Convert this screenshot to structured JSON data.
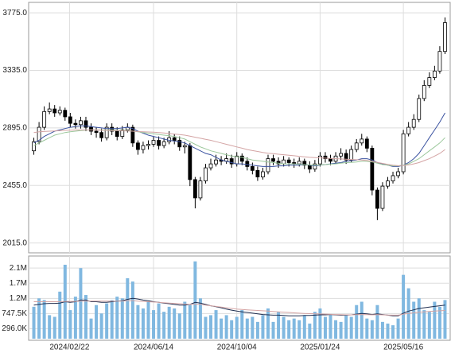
{
  "chart_data": [
    {
      "type": "candlestick",
      "x": [
        "2024-01-05",
        "2024-01-12",
        "2024-01-19",
        "2024-01-26",
        "2024-02-02",
        "2024-02-09",
        "2024-02-16",
        "2024-02-23",
        "2024-03-01",
        "2024-03-08",
        "2024-03-15",
        "2024-03-22",
        "2024-03-29",
        "2024-04-05",
        "2024-04-12",
        "2024-04-19",
        "2024-04-26",
        "2024-05-03",
        "2024-05-10",
        "2024-05-17",
        "2024-05-24",
        "2024-05-31",
        "2024-06-07",
        "2024-06-14",
        "2024-06-21",
        "2024-06-28",
        "2024-07-05",
        "2024-07-12",
        "2024-07-19",
        "2024-07-26",
        "2024-08-02",
        "2024-08-09",
        "2024-08-16",
        "2024-08-23",
        "2024-08-30",
        "2024-09-06",
        "2024-09-13",
        "2024-09-20",
        "2024-09-27",
        "2024-10-04",
        "2024-10-11",
        "2024-10-18",
        "2024-10-25",
        "2024-11-01",
        "2024-11-08",
        "2024-11-15",
        "2024-11-22",
        "2024-11-29",
        "2024-12-06",
        "2024-12-13",
        "2024-12-20",
        "2024-12-27",
        "2025-01-03",
        "2025-01-10",
        "2025-01-17",
        "2025-01-24",
        "2025-01-31",
        "2025-02-07",
        "2025-02-14",
        "2025-02-21",
        "2025-02-28",
        "2025-03-07",
        "2025-03-14",
        "2025-03-21",
        "2025-03-28",
        "2025-04-04",
        "2025-04-11",
        "2025-04-18",
        "2025-04-25",
        "2025-05-02",
        "2025-05-09",
        "2025-05-16",
        "2025-05-23",
        "2025-05-30",
        "2025-06-06",
        "2025-06-13",
        "2025-06-20",
        "2025-06-27",
        "2025-07-04",
        "2025-07-11"
      ],
      "xlim": [
        "2023-12-29",
        "2025-07-18"
      ],
      "open": [
        2720,
        2790,
        2900,
        3020,
        3040,
        3010,
        3030,
        2980,
        2930,
        2920,
        2950,
        2900,
        2870,
        2860,
        2820,
        2900,
        2870,
        2830,
        2880,
        2900,
        2780,
        2730,
        2760,
        2770,
        2800,
        2760,
        2790,
        2820,
        2800,
        2750,
        2760,
        2500,
        2360,
        2490,
        2590,
        2620,
        2650,
        2640,
        2660,
        2620,
        2680,
        2640,
        2600,
        2570,
        2520,
        2560,
        2660,
        2640,
        2620,
        2650,
        2630,
        2620,
        2640,
        2610,
        2580,
        2620,
        2680,
        2660,
        2640,
        2680,
        2700,
        2650,
        2730,
        2780,
        2810,
        2740,
        2420,
        2280,
        2450,
        2490,
        2530,
        2560,
        2850,
        2900,
        2960,
        3120,
        3220,
        3280,
        3330,
        3480
      ],
      "high": [
        2820,
        2940,
        3060,
        3090,
        3070,
        3060,
        3050,
        3010,
        2960,
        2980,
        2980,
        2930,
        2900,
        2890,
        2930,
        2930,
        2900,
        2910,
        2930,
        2920,
        2800,
        2790,
        2800,
        2830,
        2830,
        2820,
        2870,
        2850,
        2830,
        2790,
        2780,
        2520,
        2520,
        2620,
        2660,
        2690,
        2680,
        2700,
        2690,
        2710,
        2700,
        2670,
        2630,
        2600,
        2590,
        2690,
        2690,
        2670,
        2680,
        2670,
        2660,
        2670,
        2660,
        2640,
        2650,
        2710,
        2710,
        2690,
        2710,
        2740,
        2730,
        2760,
        2810,
        2850,
        2830,
        2760,
        2440,
        2480,
        2520,
        2560,
        2590,
        2880,
        2940,
        3000,
        3150,
        3260,
        3320,
        3370,
        3520,
        3740
      ],
      "low": [
        2690,
        2770,
        2880,
        3000,
        2980,
        2990,
        2950,
        2900,
        2890,
        2890,
        2870,
        2840,
        2820,
        2790,
        2800,
        2840,
        2800,
        2810,
        2860,
        2750,
        2690,
        2700,
        2730,
        2750,
        2730,
        2740,
        2770,
        2770,
        2720,
        2700,
        2450,
        2280,
        2340,
        2470,
        2570,
        2600,
        2610,
        2620,
        2590,
        2600,
        2610,
        2570,
        2540,
        2490,
        2500,
        2540,
        2610,
        2590,
        2600,
        2600,
        2590,
        2600,
        2580,
        2550,
        2560,
        2600,
        2630,
        2610,
        2620,
        2650,
        2620,
        2630,
        2710,
        2760,
        2710,
        2380,
        2190,
        2260,
        2430,
        2470,
        2510,
        2540,
        2830,
        2880,
        2940,
        3100,
        3200,
        3260,
        3310,
        3460
      ],
      "close": [
        2790,
        2900,
        3020,
        3040,
        3010,
        3030,
        2980,
        2930,
        2920,
        2950,
        2900,
        2870,
        2860,
        2820,
        2900,
        2870,
        2830,
        2880,
        2900,
        2780,
        2730,
        2760,
        2770,
        2800,
        2760,
        2790,
        2820,
        2800,
        2750,
        2760,
        2500,
        2360,
        2490,
        2590,
        2620,
        2650,
        2640,
        2660,
        2620,
        2680,
        2640,
        2600,
        2570,
        2520,
        2560,
        2660,
        2640,
        2620,
        2650,
        2630,
        2620,
        2640,
        2610,
        2580,
        2620,
        2680,
        2660,
        2640,
        2680,
        2700,
        2650,
        2730,
        2780,
        2810,
        2740,
        2420,
        2280,
        2450,
        2490,
        2530,
        2560,
        2850,
        2900,
        2960,
        3120,
        3220,
        3280,
        3330,
        3480,
        3700
      ],
      "up_color": "#ffffff",
      "down_color": "#000000",
      "series": [
        {
          "color": "#3a52a0",
          "values": [
            2780,
            2800,
            2830,
            2850,
            2870,
            2880,
            2890,
            2900,
            2905,
            2910,
            2910,
            2905,
            2900,
            2895,
            2890,
            2890,
            2890,
            2895,
            2900,
            2890,
            2870,
            2855,
            2840,
            2830,
            2820,
            2810,
            2800,
            2795,
            2790,
            2780,
            2760,
            2740,
            2720,
            2700,
            2690,
            2670,
            2650,
            2640,
            2630,
            2620,
            2620,
            2615,
            2610,
            2605,
            2600,
            2600,
            2600,
            2605,
            2605,
            2610,
            2610,
            2610,
            2615,
            2610,
            2605,
            2610,
            2615,
            2620,
            2625,
            2630,
            2640,
            2645,
            2650,
            2660,
            2660,
            2650,
            2630,
            2620,
            2610,
            2600,
            2600,
            2610,
            2630,
            2660,
            2700,
            2760,
            2820,
            2880,
            2940,
            3010
          ]
        },
        {
          "color": "#9cc89c",
          "values": [
            2760,
            2780,
            2800,
            2820,
            2840,
            2850,
            2860,
            2865,
            2870,
            2875,
            2878,
            2880,
            2880,
            2880,
            2880,
            2880,
            2878,
            2876,
            2875,
            2870,
            2865,
            2860,
            2855,
            2850,
            2845,
            2840,
            2835,
            2830,
            2820,
            2810,
            2790,
            2770,
            2750,
            2735,
            2720,
            2710,
            2700,
            2690,
            2680,
            2675,
            2670,
            2660,
            2650,
            2645,
            2640,
            2635,
            2630,
            2625,
            2620,
            2620,
            2620,
            2618,
            2615,
            2612,
            2610,
            2612,
            2615,
            2618,
            2620,
            2625,
            2630,
            2632,
            2635,
            2640,
            2640,
            2635,
            2625,
            2615,
            2610,
            2605,
            2605,
            2610,
            2620,
            2640,
            2660,
            2690,
            2720,
            2750,
            2780,
            2820
          ]
        },
        {
          "color": "#d4a4a4",
          "values": [
            2860,
            2865,
            2868,
            2870,
            2872,
            2874,
            2876,
            2878,
            2880,
            2880,
            2880,
            2880,
            2880,
            2878,
            2876,
            2875,
            2874,
            2873,
            2872,
            2870,
            2868,
            2866,
            2864,
            2862,
            2860,
            2856,
            2852,
            2848,
            2844,
            2840,
            2832,
            2824,
            2816,
            2808,
            2800,
            2790,
            2780,
            2770,
            2760,
            2750,
            2740,
            2730,
            2722,
            2715,
            2708,
            2702,
            2698,
            2694,
            2690,
            2686,
            2682,
            2678,
            2674,
            2670,
            2668,
            2666,
            2664,
            2662,
            2660,
            2658,
            2656,
            2654,
            2652,
            2650,
            2646,
            2640,
            2632,
            2624,
            2616,
            2610,
            2606,
            2608,
            2612,
            2620,
            2630,
            2645,
            2660,
            2680,
            2700,
            2730
          ]
        }
      ],
      "ylim": [
        1940,
        3855
      ],
      "yticks": [
        {
          "value": 2015,
          "label": "2015.0"
        },
        {
          "value": 2455,
          "label": "2455.0"
        },
        {
          "value": 2895,
          "label": "2895.0"
        },
        {
          "value": 3335,
          "label": "3335.0"
        },
        {
          "value": 3775,
          "label": "3775.0"
        }
      ],
      "grid": true
    },
    {
      "type": "bar",
      "values": [
        950,
        1200,
        1150,
        700,
        650,
        1400,
        2200,
        850,
        1250,
        2100,
        1300,
        600,
        1000,
        750,
        1050,
        1150,
        1250,
        1200,
        1800,
        1700,
        1000,
        900,
        1100,
        850,
        1050,
        800,
        950,
        900,
        750,
        1100,
        1000,
        2300,
        1200,
        650,
        700,
        850,
        600,
        700,
        550,
        650,
        850,
        600,
        650,
        500,
        700,
        900,
        500,
        800,
        650,
        550,
        600,
        550,
        700,
        450,
        800,
        900,
        650,
        700,
        550,
        500,
        700,
        650,
        1000,
        1100,
        600,
        550,
        1000,
        500,
        450,
        400,
        600,
        1900,
        1500,
        1100,
        1200,
        850,
        800,
        1100,
        950,
        1150
      ],
      "color": "#80b8e0",
      "series": [
        {
          "color": "#1e2e50",
          "values": [
            1000,
            1020,
            1040,
            1050,
            1050,
            1060,
            1100,
            1080,
            1100,
            1150,
            1150,
            1100,
            1100,
            1080,
            1080,
            1100,
            1120,
            1130,
            1170,
            1200,
            1180,
            1150,
            1130,
            1100,
            1080,
            1060,
            1040,
            1020,
            1000,
            1000,
            1020,
            1080,
            1060,
            1020,
            980,
            950,
            920,
            880,
            850,
            820,
            800,
            780,
            760,
            740,
            720,
            710,
            700,
            700,
            690,
            680,
            680,
            680,
            690,
            690,
            700,
            710,
            710,
            720,
            710,
            700,
            700,
            710,
            730,
            750,
            740,
            720,
            740,
            720,
            700,
            680,
            680,
            760,
            820,
            860,
            900,
            920,
            940,
            960,
            980,
            1000
          ]
        },
        {
          "color": "#d4a4a4",
          "values": [
            1100,
            1100,
            1100,
            1100,
            1100,
            1100,
            1110,
            1110,
            1110,
            1120,
            1120,
            1120,
            1120,
            1120,
            1120,
            1120,
            1120,
            1120,
            1130,
            1130,
            1120,
            1110,
            1100,
            1090,
            1080,
            1070,
            1060,
            1050,
            1040,
            1030,
            1020,
            1030,
            1020,
            1000,
            980,
            960,
            940,
            920,
            900,
            880,
            870,
            860,
            850,
            840,
            830,
            820,
            810,
            800,
            790,
            780,
            770,
            760,
            750,
            745,
            740,
            735,
            730,
            725,
            720,
            715,
            710,
            710,
            715,
            720,
            715,
            710,
            715,
            710,
            705,
            700,
            700,
            730,
            750,
            770,
            790,
            800,
            810,
            820,
            830,
            840
          ]
        }
      ],
      "ylim": [
        -47,
        2460
      ],
      "yticks": [
        {
          "value": 296,
          "label": "296.0K"
        },
        {
          "value": 747.5,
          "label": "747.5K"
        },
        {
          "value": 1199,
          "label": "1.2M"
        },
        {
          "value": 1650.5,
          "label": "1.7M"
        },
        {
          "value": 2102,
          "label": "2.1M"
        }
      ],
      "xticks": [
        {
          "value": "2024-02-22",
          "label": "2024/02/22"
        },
        {
          "value": "2024-06-14",
          "label": "2024/06/14"
        },
        {
          "value": "2024-10-04",
          "label": "2024/10/04"
        },
        {
          "value": "2025-01-24",
          "label": "2025/01/24"
        },
        {
          "value": "2025-05-16",
          "label": "2025/05/16"
        }
      ],
      "grid": true
    }
  ]
}
